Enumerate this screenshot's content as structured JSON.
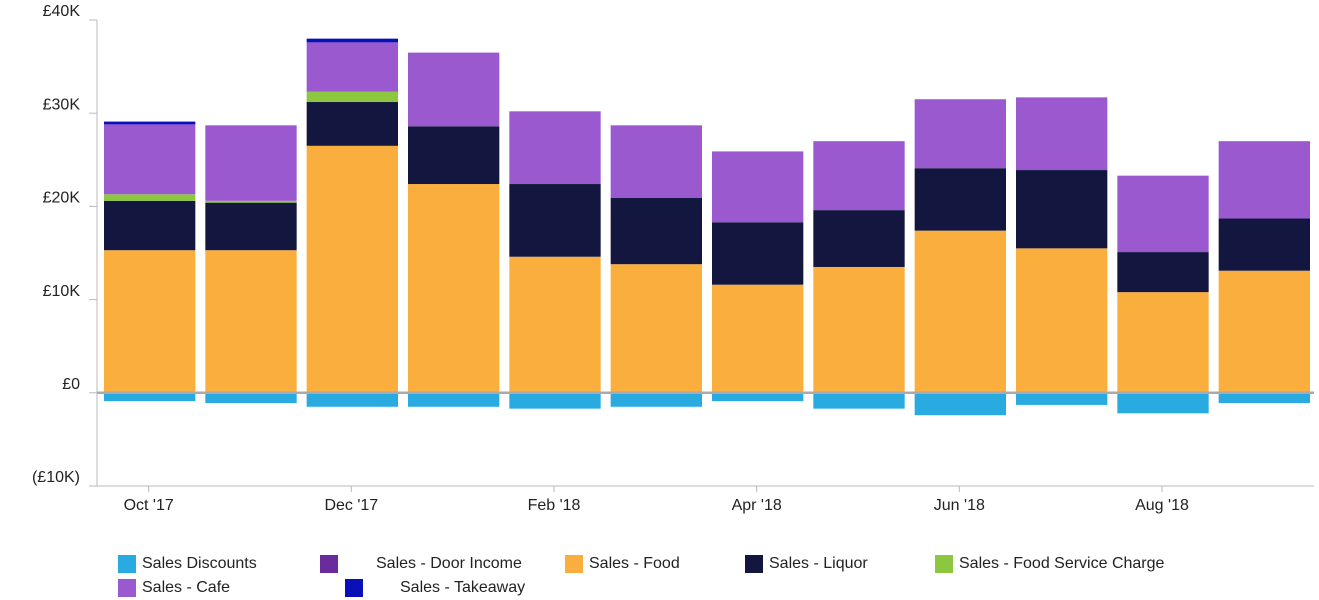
{
  "chart_data": {
    "type": "stacked_bar",
    "categories": [
      "Oct '17",
      null,
      "Dec '17",
      null,
      "Feb '18",
      null,
      "Apr '18",
      null,
      "Jun '18",
      null,
      "Aug '18",
      null
    ],
    "series": [
      {
        "name": "Sales Discounts",
        "color": "#29abe2",
        "values": [
          -900,
          -1100,
          -1500,
          -1500,
          -1700,
          -1500,
          -900,
          -1700,
          -2400,
          -1300,
          -2200,
          -1100
        ]
      },
      {
        "name": "Sales - Door Income",
        "color": "#6a2c9c",
        "values": [
          0,
          0,
          0,
          0,
          0,
          0,
          0,
          0,
          0,
          0,
          0,
          0
        ]
      },
      {
        "name": "Sales - Food",
        "color": "#f9ae3e",
        "values": [
          15300,
          15300,
          26500,
          22400,
          14600,
          13800,
          11600,
          13500,
          17400,
          15500,
          10800,
          13100
        ]
      },
      {
        "name": "Sales - Liquor",
        "color": "#131740",
        "values": [
          5300,
          5100,
          4700,
          6200,
          7800,
          7100,
          6700,
          6100,
          6700,
          8400,
          4300,
          5600
        ]
      },
      {
        "name": "Sales - Food Service Charge",
        "color": "#8dc63f",
        "values": [
          700,
          200,
          1100,
          0,
          0,
          0,
          0,
          0,
          0,
          0,
          0,
          0
        ]
      },
      {
        "name": "Sales - Cafe",
        "color": "#9b59d0",
        "values": [
          7500,
          8100,
          5300,
          7900,
          7800,
          7800,
          7600,
          7400,
          7400,
          7800,
          8200,
          8300
        ]
      },
      {
        "name": "Sales - Takeaway",
        "color": "#0a10b8",
        "values": [
          300,
          0,
          400,
          0,
          0,
          0,
          0,
          0,
          0,
          0,
          0,
          0
        ]
      }
    ],
    "ylim": [
      -10000,
      40000
    ],
    "yticks": [
      {
        "value": -10000,
        "label": "(£10K)"
      },
      {
        "value": 0,
        "label": "£0"
      },
      {
        "value": 10000,
        "label": "£10K"
      },
      {
        "value": 20000,
        "label": "£20K"
      },
      {
        "value": 30000,
        "label": "£30K"
      },
      {
        "value": 40000,
        "label": "£40K"
      }
    ],
    "legend": "bottom"
  }
}
